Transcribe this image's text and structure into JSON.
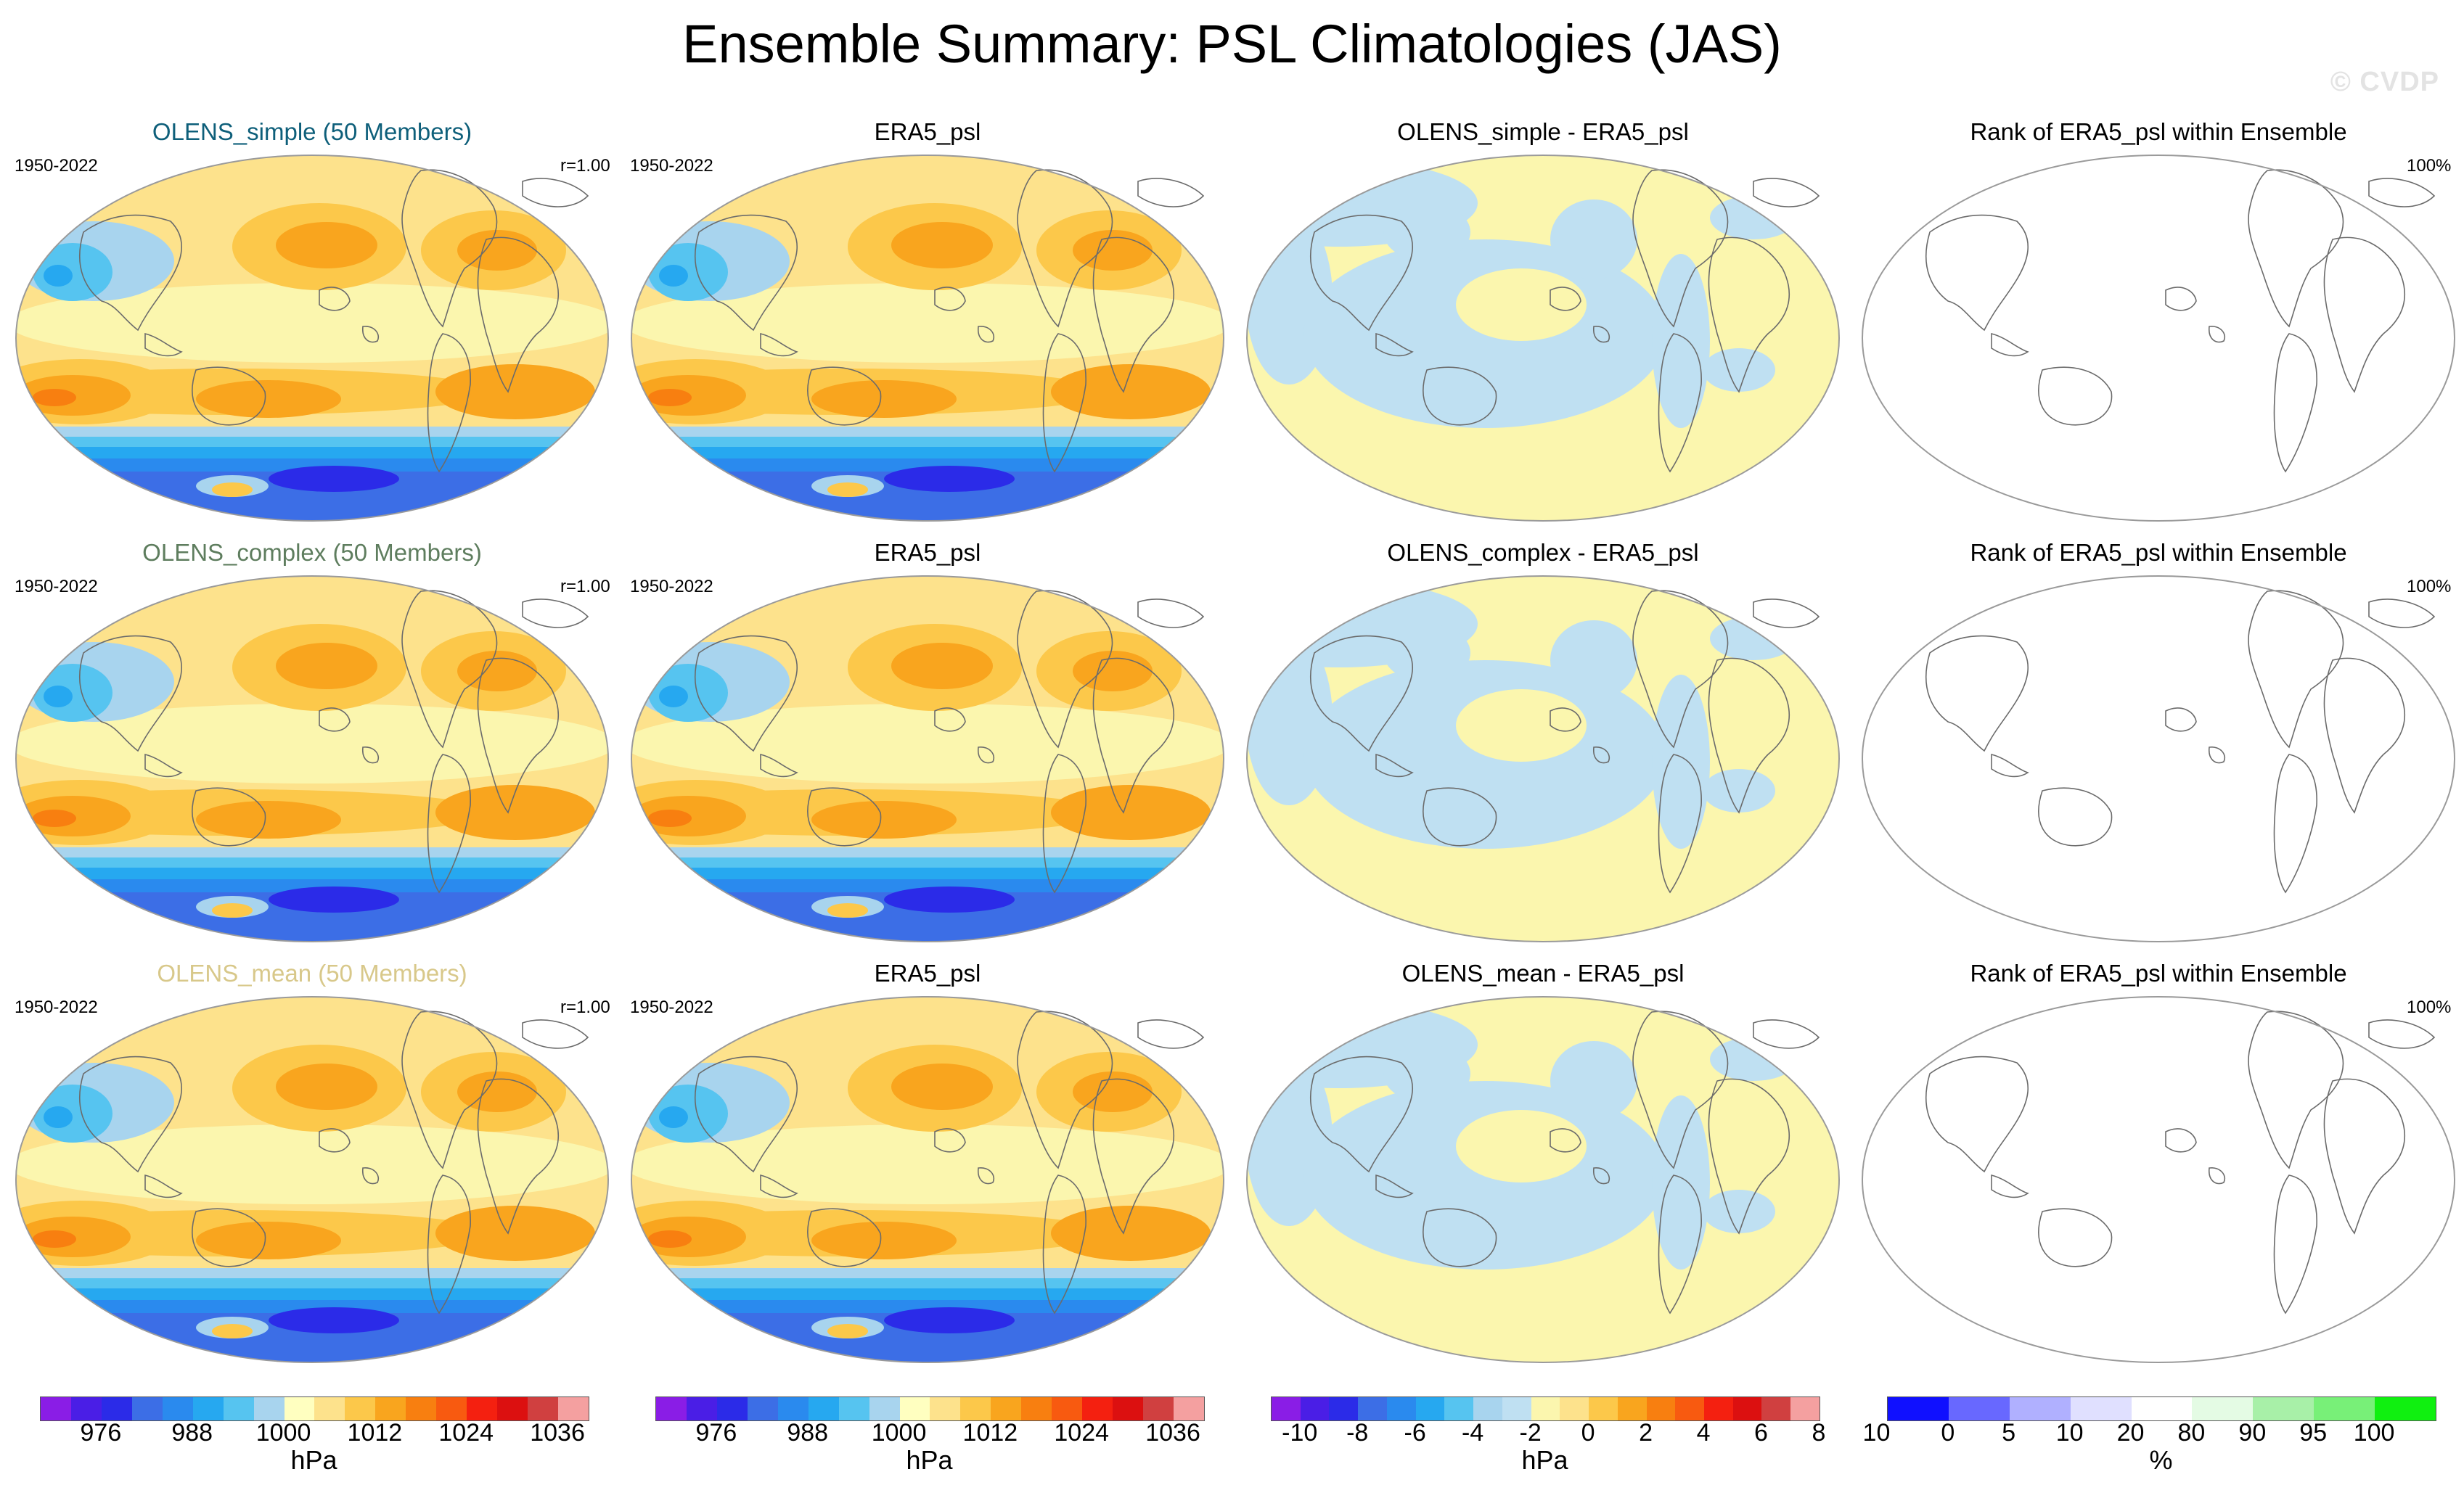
{
  "title": "Ensemble Summary: PSL Climatologies (JAS)",
  "watermark": "© CVDP",
  "rows": [
    {
      "ensemble": {
        "title": "OLENS_simple (50 Members)",
        "title_color": "#0e5f7a",
        "years": "1950-2022",
        "corr": "r=1.00"
      },
      "obs": {
        "title": "ERA5_psl",
        "years": "1950-2022"
      },
      "diff": {
        "title": "OLENS_simple - ERA5_psl"
      },
      "rank": {
        "title": "Rank of ERA5_psl within Ensemble",
        "pct": "100%"
      }
    },
    {
      "ensemble": {
        "title": "OLENS_complex (50 Members)",
        "title_color": "#5e7d5e",
        "years": "1950-2022",
        "corr": "r=1.00"
      },
      "obs": {
        "title": "ERA5_psl",
        "years": "1950-2022"
      },
      "diff": {
        "title": "OLENS_complex - ERA5_psl"
      },
      "rank": {
        "title": "Rank of ERA5_psl within Ensemble",
        "pct": "100%"
      }
    },
    {
      "ensemble": {
        "title": "OLENS_mean (50 Members)",
        "title_color": "#d8c88a",
        "years": "1950-2022",
        "corr": "r=1.00"
      },
      "obs": {
        "title": "ERA5_psl",
        "years": "1950-2022"
      },
      "diff": {
        "title": "OLENS_mean - ERA5_psl"
      },
      "rank": {
        "title": "Rank of ERA5_psl within Ensemble",
        "pct": "100%"
      }
    }
  ],
  "colorbars": {
    "psl": {
      "colors": [
        "#8a1de6",
        "#4a1ee6",
        "#2b2be8",
        "#3c6ee6",
        "#2a8aee",
        "#26a8f0",
        "#56c4f0",
        "#a8d4ee",
        "#ffffc0",
        "#fde28c",
        "#fcc84a",
        "#f9a51e",
        "#f87f10",
        "#f85a10",
        "#f42010",
        "#dc1010",
        "#d04040",
        "#f4a0a0"
      ],
      "ticks": [
        "976",
        "988",
        "1000",
        "1012",
        "1024",
        "1036"
      ],
      "unit": "hPa"
    },
    "diff": {
      "colors": [
        "#8a1de6",
        "#4a1ee6",
        "#2b2be8",
        "#3c6ee6",
        "#2a8aee",
        "#26a8f0",
        "#56c4f0",
        "#a8d4ee",
        "#bfe0f2",
        "#fbf6ae",
        "#fde28c",
        "#fcc84a",
        "#f9a51e",
        "#f87f10",
        "#f85a10",
        "#f42010",
        "#dc1010",
        "#d04040",
        "#f4a0a0"
      ],
      "ticks": [
        "-10",
        "-8",
        "-6",
        "-4",
        "-2",
        "0",
        "2",
        "4",
        "6",
        "8",
        "10"
      ],
      "unit": "hPa"
    },
    "rank": {
      "colors": [
        "#1010ff",
        "#6868ff",
        "#b0b0ff",
        "#e0e0ff",
        "#ffffff",
        "#e4fbe4",
        "#a8f0a8",
        "#78f078",
        "#10f010"
      ],
      "ticks": [
        "0",
        "5",
        "10",
        "20",
        "80",
        "90",
        "95",
        "100"
      ],
      "unit": "%"
    }
  }
}
